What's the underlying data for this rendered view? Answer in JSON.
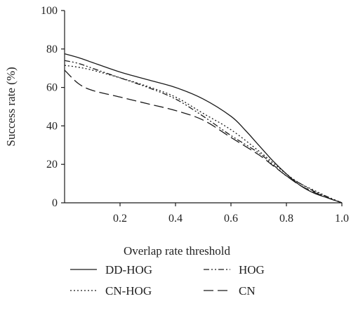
{
  "chart_data": {
    "type": "line",
    "xlabel": "Overlap rate threshold",
    "ylabel": "Success rate (%)",
    "xlim": [
      0,
      1.0
    ],
    "ylim": [
      0,
      100
    ],
    "xticks": [
      0.2,
      0.4,
      0.6,
      0.8,
      1.0
    ],
    "xtick_labels": [
      "0.2",
      "0.4",
      "0.6",
      "0.8",
      "1.0"
    ],
    "yticks": [
      0,
      20,
      40,
      60,
      80,
      100
    ],
    "ytick_labels": [
      "0",
      "20",
      "40",
      "60",
      "80",
      "100"
    ],
    "grid": false,
    "legend_position": "bottom",
    "series": [
      {
        "name": "DD-HOG",
        "style": "solid",
        "x": [
          0,
          0.05,
          0.1,
          0.2,
          0.3,
          0.4,
          0.5,
          0.6,
          0.65,
          0.7,
          0.75,
          0.8,
          0.85,
          0.9,
          0.95,
          1.0
        ],
        "y": [
          77.5,
          75.5,
          73,
          68,
          64,
          60,
          54,
          45,
          38,
          30,
          22,
          15,
          9,
          5,
          2.5,
          0
        ]
      },
      {
        "name": "HOG",
        "style": "dashdotdot",
        "x": [
          0,
          0.05,
          0.1,
          0.2,
          0.3,
          0.4,
          0.5,
          0.6,
          0.7,
          0.75,
          0.8,
          0.85,
          0.9,
          0.95,
          1.0
        ],
        "y": [
          74,
          72.5,
          70,
          65,
          60,
          54,
          45,
          35,
          26,
          20,
          14,
          10,
          6,
          3,
          0
        ]
      },
      {
        "name": "CN-HOG",
        "style": "dotted",
        "x": [
          0,
          0.05,
          0.1,
          0.2,
          0.3,
          0.4,
          0.5,
          0.6,
          0.7,
          0.75,
          0.8,
          0.85,
          0.9,
          0.95,
          1.0
        ],
        "y": [
          71.5,
          70.5,
          69,
          65,
          60.5,
          55,
          46.5,
          38,
          27,
          21,
          15,
          10,
          6.5,
          3,
          0
        ]
      },
      {
        "name": "CN",
        "style": "dashed",
        "x": [
          0,
          0.05,
          0.1,
          0.2,
          0.3,
          0.4,
          0.5,
          0.6,
          0.7,
          0.75,
          0.8,
          0.85,
          0.9,
          0.95,
          1.0
        ],
        "y": [
          69,
          62,
          58.5,
          55,
          51.5,
          48,
          43,
          34,
          25,
          19.5,
          14,
          9,
          5.5,
          2.5,
          0
        ]
      }
    ]
  },
  "legend": {
    "items": [
      {
        "label": "DD-HOG",
        "style": "solid"
      },
      {
        "label": "HOG",
        "style": "dashdotdot"
      },
      {
        "label": "CN-HOG",
        "style": "dotted"
      },
      {
        "label": "CN",
        "style": "dashed"
      }
    ]
  },
  "colors": {
    "line": "#1a1a1a",
    "axis": "#1a1a1a",
    "text": "#222222"
  }
}
